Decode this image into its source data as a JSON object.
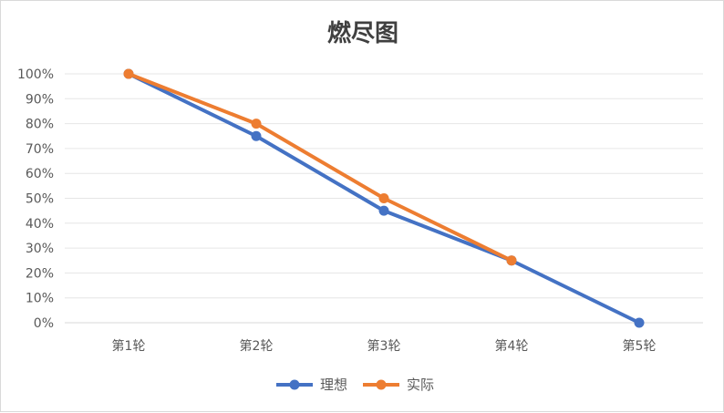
{
  "chart_data": {
    "type": "line",
    "title": "燃尽图",
    "xlabel": "",
    "ylabel": "",
    "categories": [
      "第1轮",
      "第2轮",
      "第3轮",
      "第4轮",
      "第5轮"
    ],
    "y_ticks": [
      "0%",
      "10%",
      "20%",
      "30%",
      "40%",
      "50%",
      "60%",
      "70%",
      "80%",
      "90%",
      "100%"
    ],
    "ylim": [
      0,
      1
    ],
    "grid": true,
    "legend_position": "bottom",
    "series": [
      {
        "name": "理想",
        "color": "#4472C4",
        "values": [
          1.0,
          0.75,
          0.45,
          0.25,
          0.0
        ]
      },
      {
        "name": "实际",
        "color": "#ED7D31",
        "values": [
          1.0,
          0.8,
          0.5,
          0.25,
          null
        ]
      }
    ]
  }
}
